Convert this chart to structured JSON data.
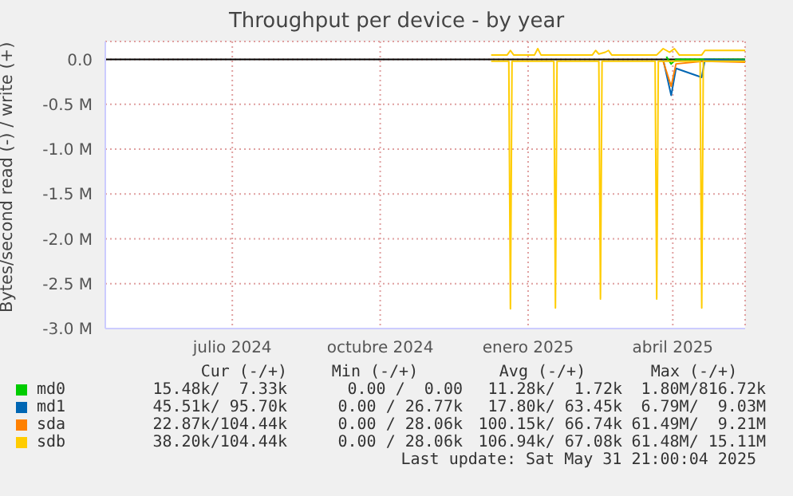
{
  "chart_data": {
    "type": "line",
    "title": "Throughput per device - by year",
    "ylabel": "Bytes/second read (-) / write (+)",
    "xlim": [
      "2024-04-28",
      "2025-05-31"
    ],
    "xticks": [
      {
        "value": "2024-07-16",
        "label": "julio 2024"
      },
      {
        "value": "2024-10-16",
        "label": "octubre 2024"
      },
      {
        "value": "2025-01-16",
        "label": "enero 2025"
      },
      {
        "value": "2025-04-16",
        "label": "abril 2025"
      }
    ],
    "ylim": [
      -3000000,
      200000
    ],
    "yticks": [
      {
        "value": -3000000,
        "label": "-3.0 M"
      },
      {
        "value": -2500000,
        "label": "-2.5 M"
      },
      {
        "value": -2000000,
        "label": "-2.0 M"
      },
      {
        "value": -1500000,
        "label": "-1.5 M"
      },
      {
        "value": -1000000,
        "label": "-1.0 M"
      },
      {
        "value": -500000,
        "label": "-0.5 M"
      },
      {
        "value": 0,
        "label": "0.0"
      }
    ],
    "grid": true,
    "legend": "bottom",
    "marker": "none",
    "series": [
      {
        "name": "md0",
        "color": "#00cc00",
        "x": [
          "2025-04-12",
          "2025-04-15",
          "2025-04-18",
          "2025-05-31"
        ],
        "values": [
          30000,
          -50000,
          0,
          0
        ]
      },
      {
        "name": "md1",
        "color": "#0066b3",
        "x": [
          "2025-04-10",
          "2025-04-15",
          "2025-04-18",
          "2025-05-04",
          "2025-05-06",
          "2025-05-31"
        ],
        "values": [
          0,
          -400000,
          -100000,
          -200000,
          0,
          -10000
        ]
      },
      {
        "name": "sda",
        "color": "#ff8000",
        "x": [
          "2025-04-10",
          "2025-04-15",
          "2025-04-18",
          "2025-05-05",
          "2025-05-31"
        ],
        "values": [
          -20000,
          -300000,
          -50000,
          -20000,
          -30000
        ]
      },
      {
        "name": "sdb",
        "color": "#ffcc00",
        "x": [
          "2024-12-24",
          "2025-01-04",
          "2025-01-05",
          "2025-01-06",
          "2025-02-01",
          "2025-02-02",
          "2025-02-03",
          "2025-03-01",
          "2025-03-02",
          "2025-03-03",
          "2025-04-05",
          "2025-04-06",
          "2025-04-07",
          "2025-05-03",
          "2025-05-04",
          "2025-05-05",
          "2025-05-31"
        ],
        "values": [
          -20000,
          -20000,
          -2780000,
          -20000,
          -20000,
          -2770000,
          -20000,
          -20000,
          -2670000,
          -20000,
          -20000,
          -2670000,
          -20000,
          -20000,
          -2770000,
          -20000,
          -20000
        ]
      },
      {
        "color": "#ffcc00",
        "x": [
          "2024-12-24",
          "2025-01-03",
          "2025-01-05",
          "2025-01-07",
          "2025-01-20",
          "2025-01-22",
          "2025-01-24",
          "2025-02-25",
          "2025-02-27",
          "2025-03-01",
          "2025-03-05",
          "2025-03-07",
          "2025-03-09",
          "2025-04-06",
          "2025-04-10",
          "2025-04-14",
          "2025-04-17",
          "2025-04-20",
          "2025-05-04",
          "2025-05-06",
          "2025-05-31"
        ],
        "values": [
          50000,
          50000,
          100000,
          50000,
          50000,
          120000,
          50000,
          50000,
          100000,
          60000,
          80000,
          100000,
          50000,
          50000,
          120000,
          80000,
          120000,
          50000,
          50000,
          100000,
          100000
        ]
      }
    ],
    "annotations": [
      "Cur (-/+)",
      "Min (-/+)",
      "Avg (-/+)",
      "Max (-/+)",
      "15.48k/  7.33k",
      "0.00 /  0.00",
      "11.28k/  1.72k",
      "1.80M/816.72k",
      "45.51k/ 95.70k",
      "0.00 / 26.77k",
      "17.80k/ 63.45k",
      "6.79M/  9.03M",
      "22.87k/104.44k",
      "0.00 / 28.06k",
      "100.15k/ 66.74k",
      "61.49M/  9.21M",
      "38.20k/104.44k",
      "0.00 / 28.06k",
      "106.94k/ 67.08k",
      "61.48M/ 15.11M",
      "Last update: Sat May 31 21:00:04 2025"
    ]
  }
}
